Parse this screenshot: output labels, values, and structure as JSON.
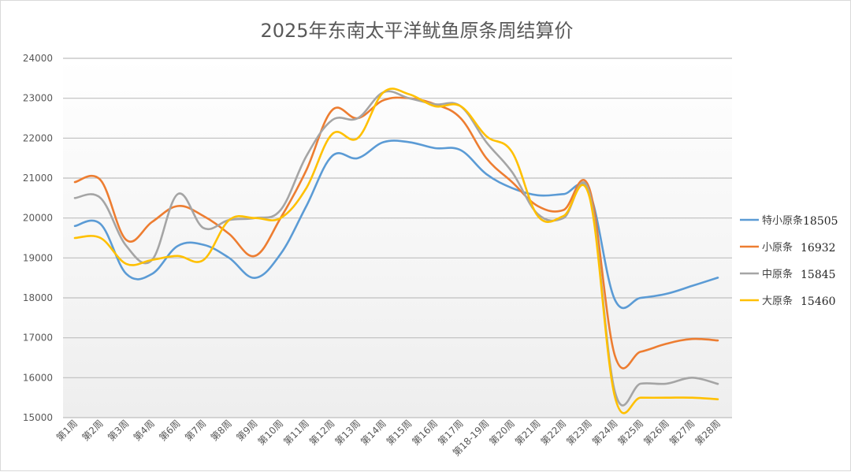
{
  "chart_data": {
    "type": "line",
    "title": "2025年东南太平洋鱿鱼原条周结算价",
    "xlabel": "",
    "ylabel": "",
    "ylim": [
      15000,
      24000
    ],
    "yticks": [
      15000,
      16000,
      17000,
      18000,
      19000,
      20000,
      21000,
      22000,
      23000,
      24000
    ],
    "grid": true,
    "legend_position": "right",
    "categories": [
      "第1周",
      "第2周",
      "第3周",
      "第4周",
      "第6周",
      "第7周",
      "第8周",
      "第9周",
      "第10周",
      "第11周",
      "第12周",
      "第13周",
      "第14周",
      "第15周",
      "第16周",
      "第17周",
      "第18-19周",
      "第20周",
      "第21周",
      "第22周",
      "第23周",
      "第24周",
      "第25周",
      "第26周",
      "第27周",
      "第28周"
    ],
    "series": [
      {
        "name": "特小原条",
        "last_value": "18505",
        "color": "#5b9bd5",
        "values": [
          19800,
          19850,
          18600,
          18600,
          19300,
          19330,
          19000,
          18500,
          19100,
          20300,
          21550,
          21500,
          21900,
          21900,
          21750,
          21700,
          21100,
          20750,
          20570,
          20600,
          20650,
          17950,
          18000,
          18100,
          18300,
          18505
        ]
      },
      {
        "name": "小原条",
        "last_value": "16932",
        "color": "#ed7d31",
        "values": [
          20900,
          20950,
          19450,
          19900,
          20300,
          20050,
          19600,
          19050,
          20000,
          21200,
          22700,
          22500,
          22950,
          23000,
          22850,
          22500,
          21500,
          20900,
          20300,
          20200,
          20750,
          16550,
          16650,
          16850,
          16970,
          16932
        ]
      },
      {
        "name": "中原条",
        "last_value": "15845",
        "color": "#a5a5a5",
        "values": [
          20500,
          20500,
          19300,
          18950,
          20600,
          19750,
          19950,
          20000,
          20200,
          21550,
          22450,
          22500,
          23150,
          23000,
          22850,
          22800,
          21900,
          21150,
          20100,
          20000,
          20650,
          15650,
          15850,
          15850,
          16000,
          15845
        ]
      },
      {
        "name": "大原条",
        "last_value": "15460",
        "color": "#ffc000",
        "values": [
          19500,
          19500,
          18850,
          18950,
          19050,
          18950,
          19950,
          20000,
          20000,
          20750,
          22100,
          22000,
          23150,
          23100,
          22800,
          22800,
          22050,
          21650,
          20050,
          20050,
          20550,
          15520,
          15500,
          15500,
          15500,
          15460
        ]
      }
    ]
  }
}
